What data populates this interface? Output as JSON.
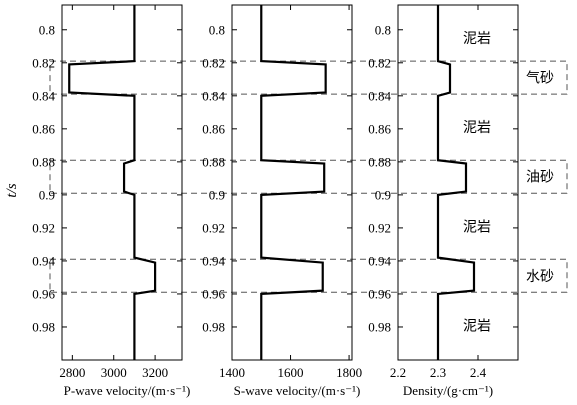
{
  "chart_data": {
    "type": "line",
    "ylabel": "t/s",
    "y_ticks": [
      "0.8",
      "0.82",
      "0.84",
      "0.86",
      "0.88",
      "0.9",
      "0.92",
      "0.94",
      "0.96",
      "0.98"
    ],
    "y_tick_values": [
      0.8,
      0.82,
      0.84,
      0.86,
      0.88,
      0.9,
      0.92,
      0.94,
      0.96,
      0.98
    ],
    "ylim": [
      0.785,
      1.0
    ],
    "y_inverted": true,
    "panels": [
      {
        "id": "p-wave",
        "xlabel": "P-wave velocity/(m·s⁻¹)",
        "xlim": [
          2750,
          3330
        ],
        "x_tick_values": [
          2800,
          3000,
          3200
        ],
        "x_ticks": [
          "2800",
          "3000",
          "3200"
        ],
        "series": [
          {
            "t": [
              0.785,
              0.819,
              0.821,
              0.838,
              0.84,
              0.879,
              0.881,
              0.898,
              0.9,
              0.938,
              0.941,
              0.958,
              0.96,
              1.0
            ],
            "x": [
              3100,
              3100,
              2785,
              2785,
              3100,
              3100,
              3050,
              3050,
              3100,
              3100,
              3200,
              3200,
              3100,
              3100
            ]
          }
        ]
      },
      {
        "id": "s-wave",
        "xlabel": "S-wave velocity/(m·s⁻¹)",
        "xlim": [
          1400,
          1810
        ],
        "x_tick_values": [
          1400,
          1600,
          1800
        ],
        "x_ticks": [
          "1400",
          "1600",
          "1800"
        ],
        "series": [
          {
            "t": [
              0.785,
              0.819,
              0.821,
              0.838,
              0.84,
              0.879,
              0.881,
              0.898,
              0.9,
              0.938,
              0.941,
              0.958,
              0.96,
              1.0
            ],
            "x": [
              1500,
              1500,
              1720,
              1720,
              1500,
              1500,
              1715,
              1715,
              1500,
              1500,
              1710,
              1710,
              1500,
              1500
            ]
          }
        ]
      },
      {
        "id": "density",
        "xlabel": "Density/(g·cm⁻¹)",
        "xlim": [
          2.2,
          2.5
        ],
        "x_tick_values": [
          2.2,
          2.3,
          2.4
        ],
        "x_ticks": [
          "2.2",
          "2.3",
          "2.4"
        ],
        "series": [
          {
            "t": [
              0.785,
              0.819,
              0.821,
              0.838,
              0.84,
              0.879,
              0.881,
              0.898,
              0.9,
              0.938,
              0.941,
              0.958,
              0.96,
              1.0
            ],
            "x": [
              2.3,
              2.3,
              2.33,
              2.33,
              2.3,
              2.3,
              2.37,
              2.37,
              2.3,
              2.3,
              2.39,
              2.39,
              2.3,
              2.3
            ]
          }
        ]
      }
    ],
    "zones": [
      {
        "t_top": 0.819,
        "t_bottom": 0.839,
        "label": "气砂"
      },
      {
        "t_top": 0.879,
        "t_bottom": 0.899,
        "label": "油砂"
      },
      {
        "t_top": 0.939,
        "t_bottom": 0.959,
        "label": "水砂"
      }
    ],
    "rock_labels": [
      {
        "t": 0.805,
        "label": "泥岩"
      },
      {
        "t": 0.859,
        "label": "泥岩"
      },
      {
        "t": 0.919,
        "label": "泥岩"
      },
      {
        "t": 0.979,
        "label": "泥岩"
      }
    ]
  }
}
